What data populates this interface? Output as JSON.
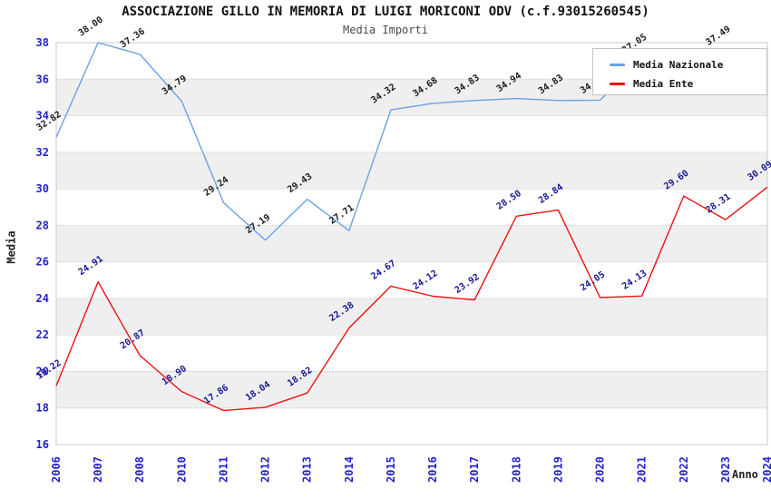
{
  "title": "ASSOCIAZIONE GILLO IN MEMORIA DI LUIGI MORICONI ODV (c.f.93015260545)",
  "subtitle": "Media Importi",
  "axes": {
    "y_title": "Media",
    "x_title": "Anno"
  },
  "legend": {
    "items": [
      {
        "label": "Media Nazionale",
        "color": "#6aa2e4"
      },
      {
        "label": "Media Ente",
        "color": "#ee1111"
      }
    ]
  },
  "chart_data": {
    "type": "line",
    "title": "ASSOCIAZIONE GILLO IN MEMORIA DI LUIGI MORICONI ODV (c.f.93015260545)",
    "subtitle": "Media Importi",
    "xlabel": "Anno",
    "ylabel": "Media",
    "ylim": [
      16,
      38
    ],
    "y_ticks": [
      16,
      18,
      20,
      22,
      24,
      26,
      28,
      30,
      32,
      34,
      36,
      38
    ],
    "band_intervals": [
      [
        18,
        20
      ],
      [
        22,
        24
      ],
      [
        26,
        28
      ],
      [
        30,
        32
      ],
      [
        34,
        36
      ]
    ],
    "categories": [
      "2006",
      "2007",
      "2008",
      "2010",
      "2011",
      "2012",
      "2013",
      "2014",
      "2015",
      "2016",
      "2017",
      "2018",
      "2019",
      "2020",
      "2021",
      "2022",
      "2023",
      "2024"
    ],
    "series": [
      {
        "name": "Media Nazionale",
        "color": "#6aa2e4",
        "label_color": "#1a1a1a",
        "values": [
          32.82,
          38.0,
          37.36,
          34.79,
          29.24,
          27.19,
          29.43,
          27.71,
          34.32,
          34.68,
          34.83,
          34.94,
          34.83,
          34.85,
          37.05,
          36.46,
          37.49,
          37.5
        ],
        "labels": [
          "32.82",
          "38.00",
          "37.36",
          "34.79",
          "29.24",
          "27.19",
          "29.43",
          "27.71",
          "34.32",
          "34.68",
          "34.83",
          "34.94",
          "34.83",
          "34.85",
          "37.05",
          null,
          "37.49",
          null
        ]
      },
      {
        "name": "Media Ente",
        "color": "#ee1111",
        "label_color": "#161695",
        "values": [
          19.22,
          24.91,
          20.87,
          18.9,
          17.86,
          18.04,
          18.82,
          22.38,
          24.67,
          24.12,
          23.92,
          28.5,
          28.84,
          24.05,
          24.13,
          29.6,
          28.31,
          30.09
        ],
        "labels": [
          "19.22",
          "24.91",
          "20.87",
          "18.90",
          "17.86",
          "18.04",
          "18.82",
          "22.38",
          "24.67",
          "24.12",
          "23.92",
          "28.50",
          "28.84",
          "24.05",
          "24.13",
          "29.60",
          "28.31",
          "30.09"
        ]
      }
    ],
    "colors": {
      "band": "#efefef",
      "grid": "#e0e0e0",
      "plot_border": "#c9c9c9",
      "tick_labels": "#2222cc"
    },
    "legend_position": "top-right",
    "grid": "horizontal-bands"
  }
}
